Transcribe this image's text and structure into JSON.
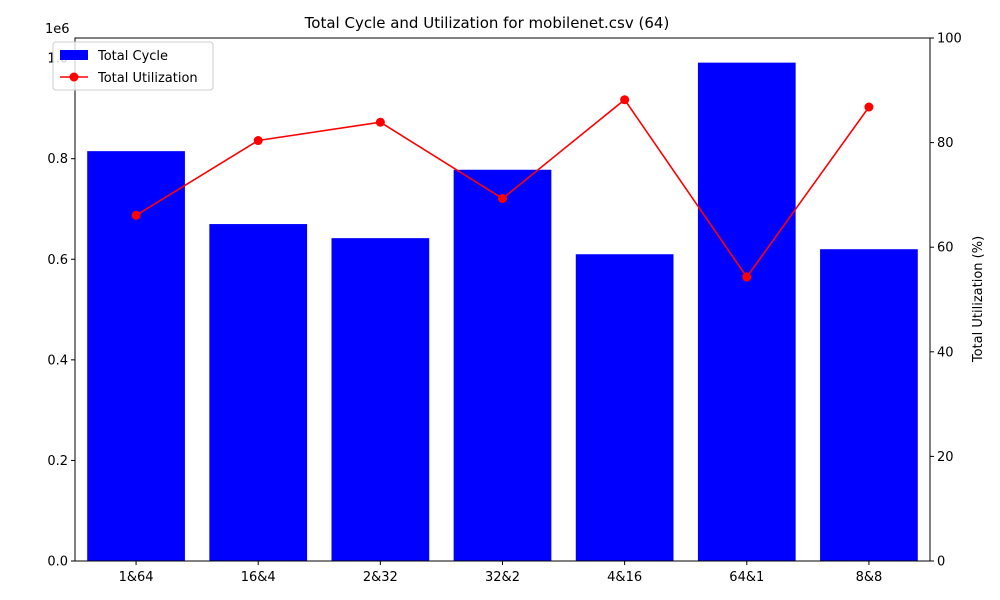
{
  "chart_data": {
    "type": "bar+line",
    "title": "Total Cycle and Utilization for mobilenet.csv (64)",
    "categories": [
      "1&64",
      "16&4",
      "2&32",
      "32&2",
      "4&16",
      "64&1",
      "8&8"
    ],
    "series": [
      {
        "name": "Total Cycle",
        "type": "bar",
        "axis": "left",
        "color": "#0000ff",
        "values": [
          815000,
          670000,
          642000,
          778000,
          610000,
          991000,
          620000
        ]
      },
      {
        "name": "Total Utilization",
        "type": "line",
        "axis": "right",
        "color": "#ff0000",
        "marker": "circle",
        "values": [
          66.1,
          80.4,
          83.9,
          69.3,
          88.2,
          54.3,
          86.8
        ]
      }
    ],
    "y_left": {
      "label": "",
      "offset_text": "1e6",
      "ylim": [
        0,
        1040000
      ],
      "ticks": [
        0,
        200000,
        400000,
        600000,
        800000,
        1000000
      ],
      "tick_labels": [
        "0.0",
        "0.2",
        "0.4",
        "0.6",
        "0.8",
        "1.0"
      ]
    },
    "y_right": {
      "label": "Total Utilization (%)",
      "ylim": [
        0,
        100
      ],
      "ticks": [
        0,
        20,
        40,
        60,
        80,
        100
      ],
      "tick_labels": [
        "0",
        "20",
        "40",
        "60",
        "80",
        "100"
      ]
    },
    "grid": false,
    "legend": "upper-left"
  }
}
